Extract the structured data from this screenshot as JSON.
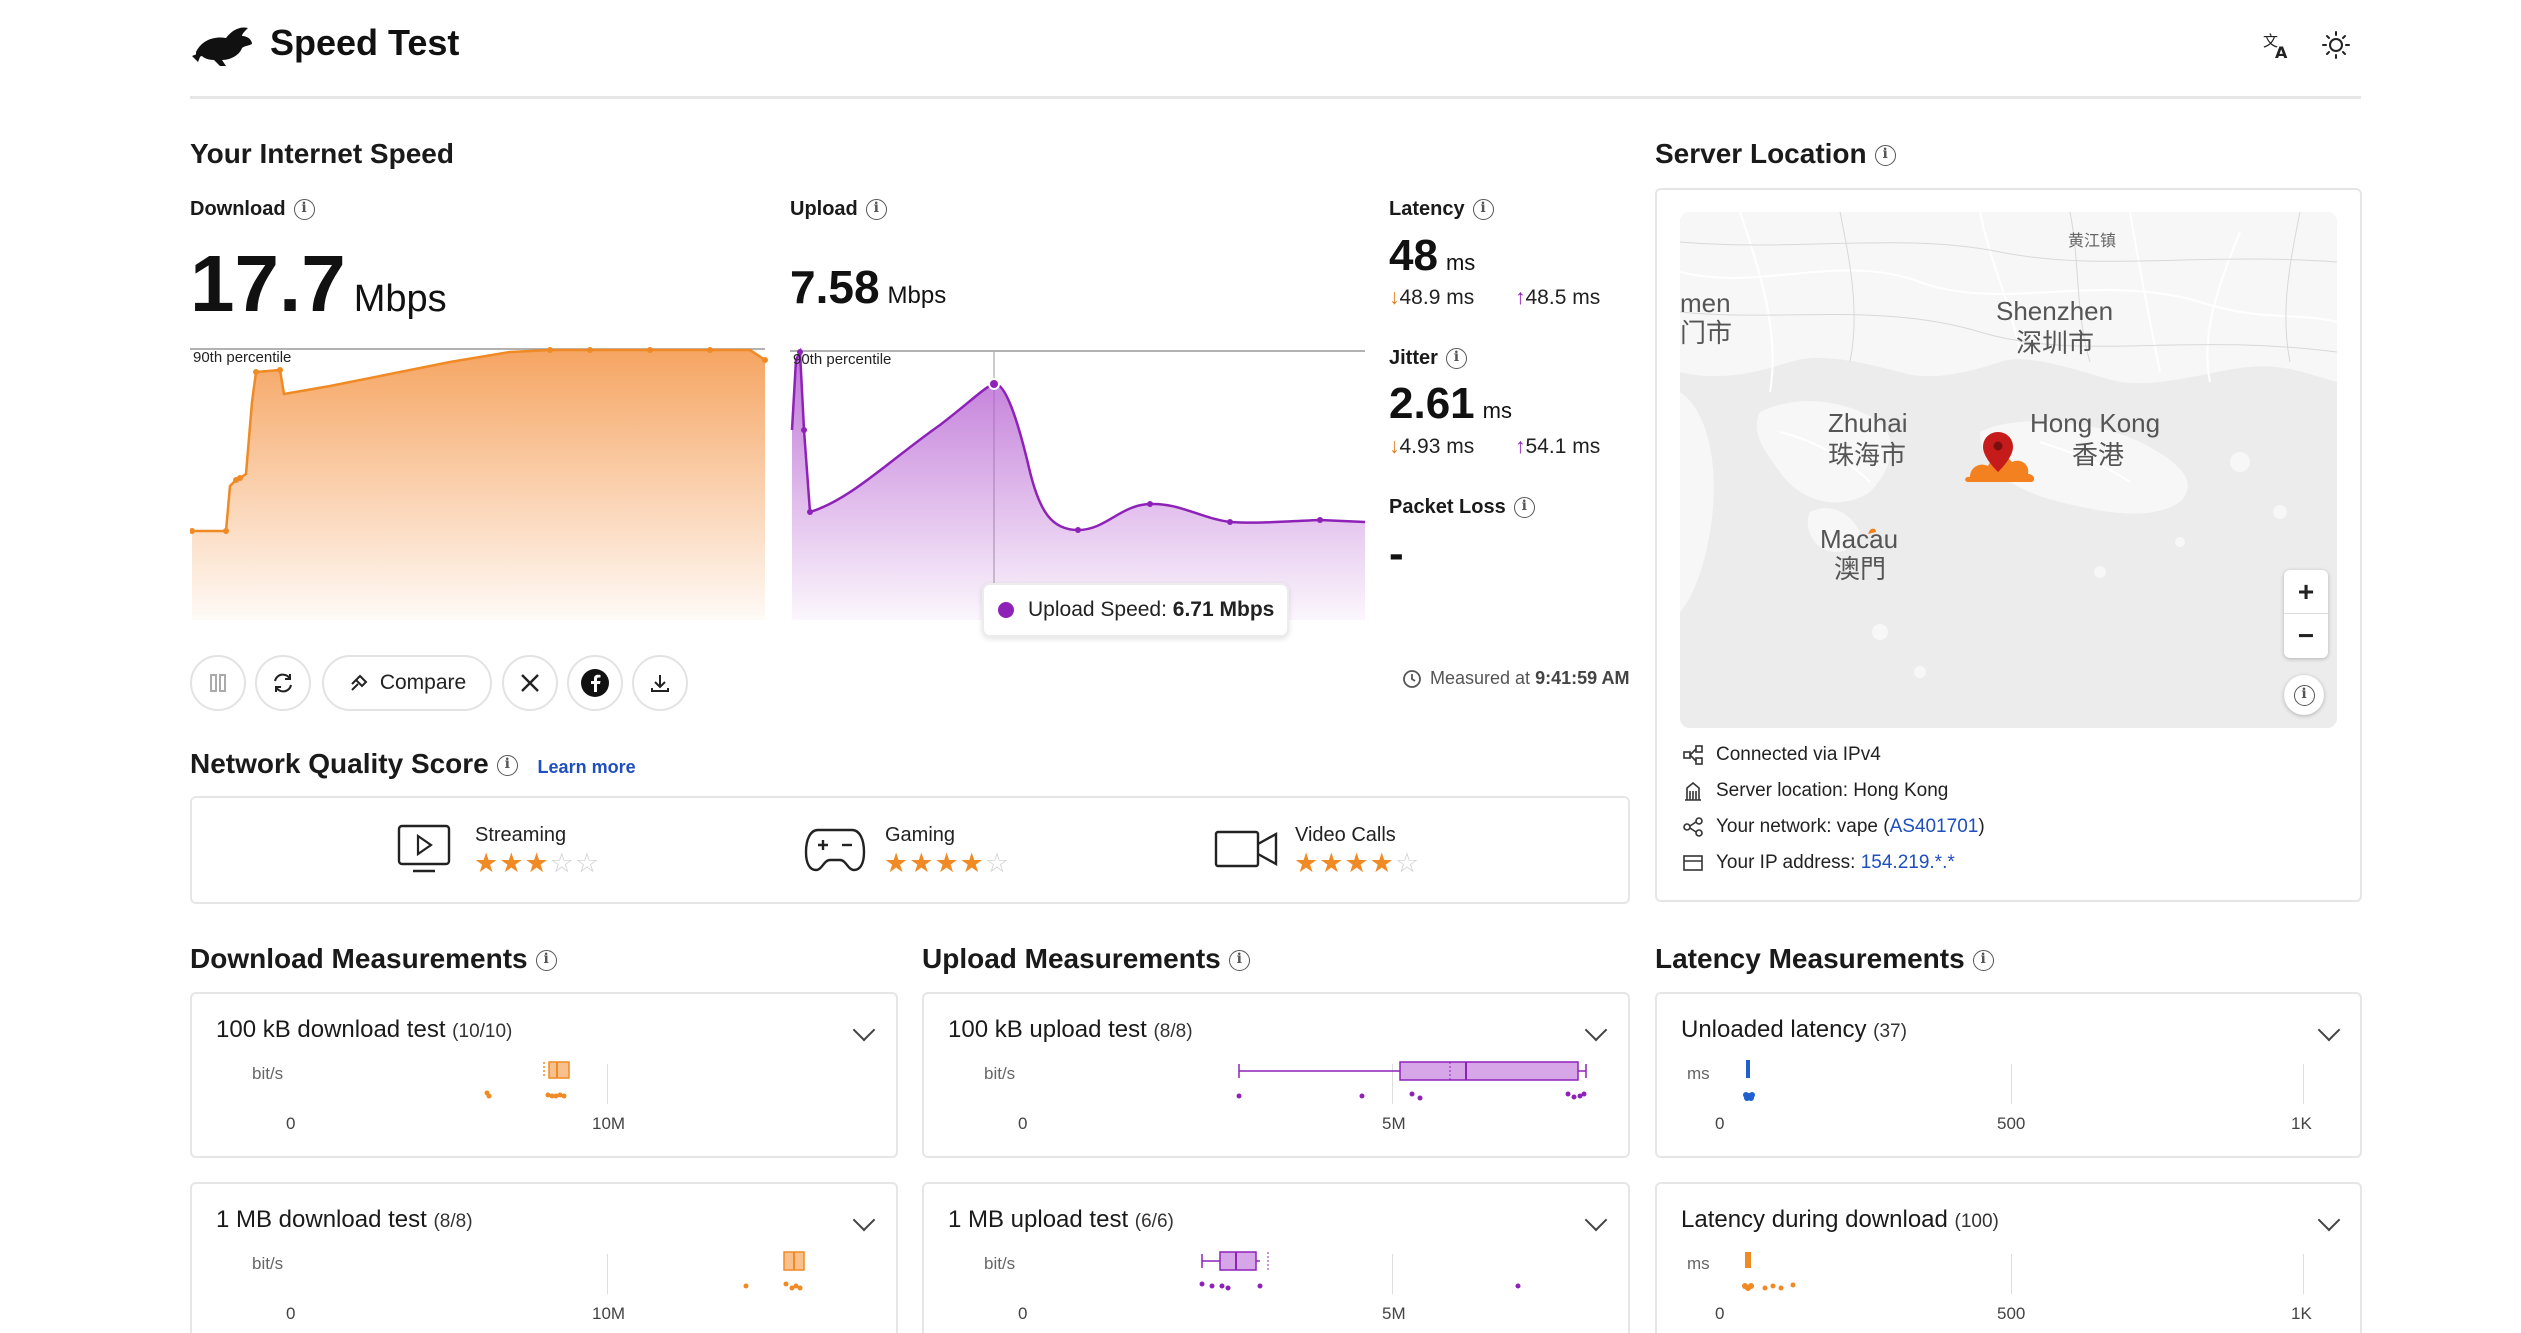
{
  "header": {
    "title": "Speed Test",
    "translate_icon": "translate-icon",
    "theme_icon": "sun-icon"
  },
  "speed": {
    "section_title": "Your Internet Speed",
    "download_label": "Download",
    "download_value": "17.7",
    "download_unit": "Mbps",
    "upload_label": "Upload",
    "upload_value": "7.58",
    "upload_unit": "Mbps",
    "percentile_label": "90th percentile",
    "upload_percentile_label": "90th percentile",
    "tooltip_label": "Upload Speed:",
    "tooltip_value": "6.71 Mbps"
  },
  "latency": {
    "label": "Latency",
    "value": "48",
    "unit": "ms",
    "down": "48.9 ms",
    "up": "48.5 ms"
  },
  "jitter": {
    "label": "Jitter",
    "value": "2.61",
    "unit": "ms",
    "down": "4.93 ms",
    "up": "54.1 ms"
  },
  "packet_loss": {
    "label": "Packet Loss",
    "value": "-"
  },
  "toolbar": {
    "compare_label": "Compare",
    "measured_prefix": "Measured at",
    "measured_time": "9:41:59 AM"
  },
  "quality": {
    "title": "Network Quality Score",
    "learn_more": "Learn more",
    "items": [
      {
        "label": "Streaming",
        "stars": 3
      },
      {
        "label": "Gaming",
        "stars": 4
      },
      {
        "label": "Video Calls",
        "stars": 4
      }
    ]
  },
  "server": {
    "title": "Server Location",
    "connected_via": "Connected via  IPv4",
    "location_prefix": "Server location:",
    "location": "Hong Kong",
    "network_prefix": "Your network:",
    "network_name": "vape (",
    "network_asn": "AS401701",
    "network_close": ")",
    "ip_prefix": "Your IP address:",
    "ip": "154.219.*.*",
    "map_labels": {
      "huangjiang": "黄江镇",
      "men": "men",
      "men_cn": "门市",
      "shenzhen": "Shenzhen",
      "shenzhen_cn": "深圳市",
      "zhuhai": "Zhuhai",
      "zhuhai_cn": "珠海市",
      "hongkong": "Hong Kong",
      "hongkong_cn": "香港",
      "macau": "Macau",
      "macau_cn": "澳門"
    }
  },
  "measurements": {
    "download_title": "Download Measurements",
    "upload_title": "Upload Measurements",
    "latency_title": "Latency Measurements",
    "bits_unit": "bit/s",
    "ms_unit": "ms",
    "tests": {
      "dl100k": {
        "title": "100 kB download test",
        "count": "(10/10)",
        "ticks": [
          "0",
          "10M"
        ]
      },
      "ul100k": {
        "title": "100 kB upload test",
        "count": "(8/8)",
        "ticks": [
          "0",
          "5M"
        ]
      },
      "lat_unloaded": {
        "title": "Unloaded latency",
        "count": "(37)",
        "ticks": [
          "0",
          "500",
          "1K"
        ]
      },
      "dl1m": {
        "title": "1 MB download test",
        "count": "(8/8)",
        "ticks": [
          "0",
          "10M"
        ]
      },
      "ul1m": {
        "title": "1 MB upload test",
        "count": "(6/6)",
        "ticks": [
          "0",
          "5M"
        ]
      },
      "lat_download": {
        "title": "Latency during download",
        "count": "(100)",
        "ticks": [
          "0",
          "500",
          "1K"
        ]
      }
    }
  },
  "colors": {
    "download": "#f08a24",
    "upload": "#8e22b8",
    "latency": "#1f5fd0",
    "link": "#1f4fbf"
  }
}
